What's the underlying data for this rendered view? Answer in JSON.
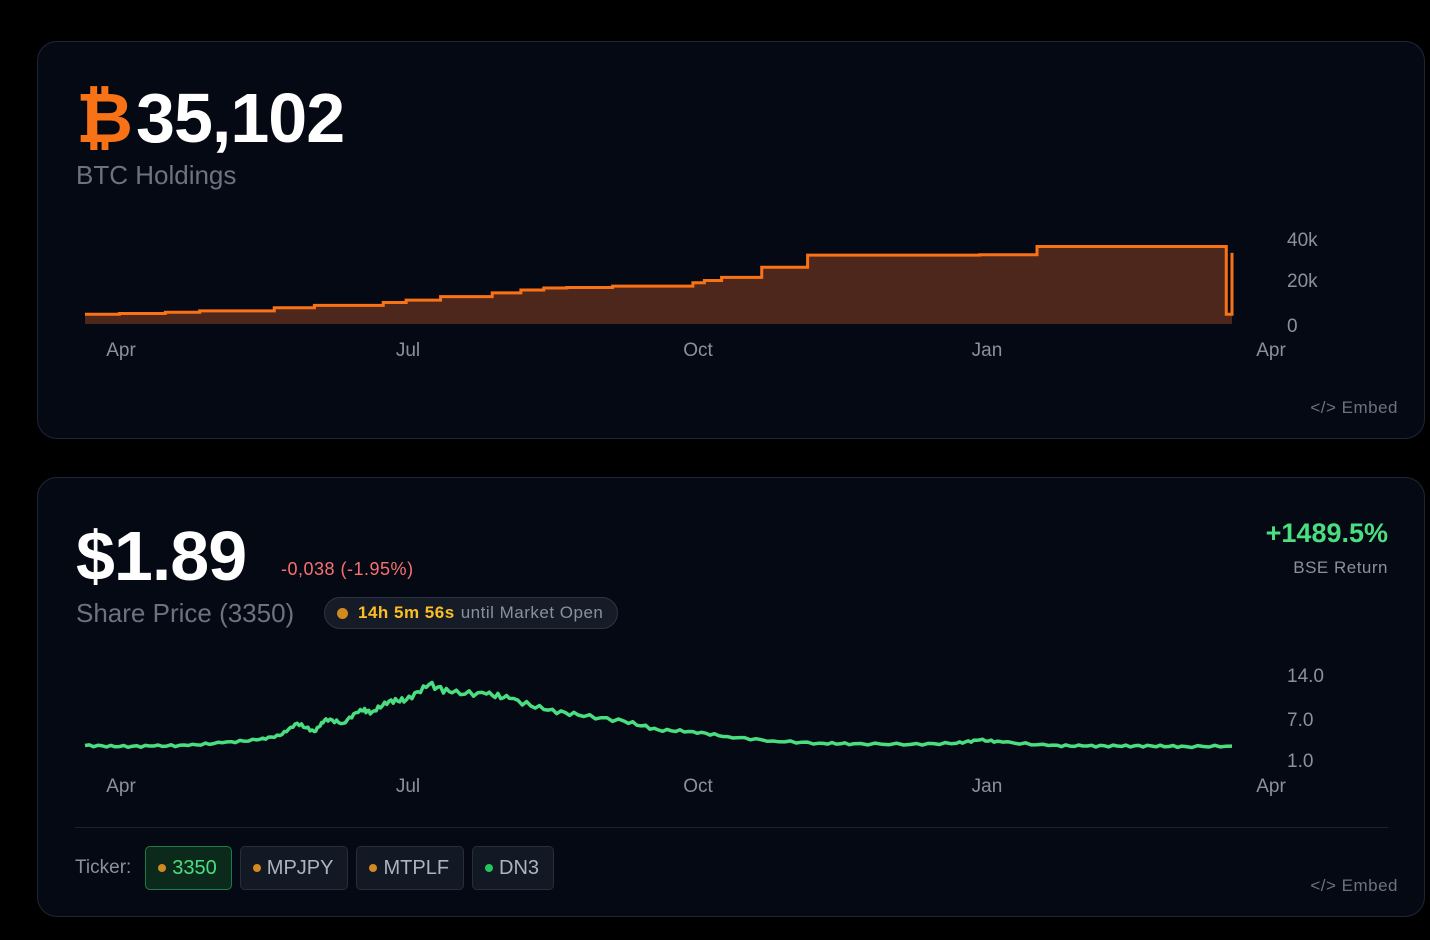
{
  "btc_card": {
    "currency_symbol": "₿",
    "value": "35,102",
    "subtitle": "BTC Holdings",
    "embed_label": "</> Embed",
    "colors": {
      "line": "#f97316",
      "fill": "#4e271c"
    }
  },
  "price_card": {
    "value": "$1.89",
    "change": "-0,038 (-1.95%)",
    "subtitle": "Share Price (3350)",
    "market_status": {
      "countdown": "14h 5m 56s",
      "label": "until Market Open",
      "dot_color": "#d18a1f"
    },
    "return_value": "+1489.5%",
    "return_label": "BSE Return",
    "embed_label": "</> Embed",
    "ticker_label": "Ticker:",
    "tickers": [
      {
        "label": "3350",
        "dot_color": "#d18a1f",
        "active": true
      },
      {
        "label": "MPJPY",
        "dot_color": "#d18a1f",
        "active": false
      },
      {
        "label": "MTPLF",
        "dot_color": "#d18a1f",
        "active": false
      },
      {
        "label": "DN3",
        "dot_color": "#22c55e",
        "active": false
      }
    ],
    "colors": {
      "line": "#4ade80"
    }
  },
  "chart_data": [
    {
      "type": "area",
      "title": "BTC Holdings",
      "step": true,
      "x_ticks": [
        "Apr",
        "Jul",
        "Oct",
        "Jan",
        "Apr"
      ],
      "y_ticks": [
        "40k",
        "20k",
        "0"
      ],
      "ylim": [
        0,
        40000
      ],
      "x": [
        0,
        0.03,
        0.07,
        0.1,
        0.165,
        0.2,
        0.26,
        0.28,
        0.31,
        0.355,
        0.38,
        0.4,
        0.42,
        0.46,
        0.53,
        0.54,
        0.555,
        0.59,
        0.63,
        0.78,
        0.83,
        0.9,
        0.99,
        0.995,
        1.0
      ],
      "values": [
        4800,
        5200,
        5800,
        6500,
        8000,
        9200,
        10600,
        11800,
        13500,
        15400,
        16800,
        17800,
        18000,
        18700,
        20400,
        21500,
        23000,
        28000,
        34000,
        34200,
        38300,
        38300,
        38300,
        4800,
        35102
      ],
      "series_color": "#f97316",
      "legend": null,
      "grid": false
    },
    {
      "type": "line",
      "title": "Share Price (3350)",
      "x_ticks": [
        "Apr",
        "Jul",
        "Oct",
        "Jan",
        "Apr"
      ],
      "y_ticks": [
        "14.0",
        "7.0",
        "1.0"
      ],
      "ylim": [
        1.0,
        14.0
      ],
      "x": [
        0,
        0.03,
        0.06,
        0.09,
        0.12,
        0.15,
        0.17,
        0.185,
        0.2,
        0.21,
        0.225,
        0.24,
        0.25,
        0.265,
        0.28,
        0.3,
        0.32,
        0.35,
        0.37,
        0.4,
        0.43,
        0.47,
        0.5,
        0.53,
        0.56,
        0.6,
        0.64,
        0.67,
        0.72,
        0.76,
        0.78,
        0.8,
        0.84,
        0.87,
        0.9,
        0.93,
        0.96,
        1.0
      ],
      "values": [
        2.0,
        1.8,
        1.9,
        2.0,
        2.5,
        3.0,
        3.8,
        6.0,
        4.5,
        6.8,
        6.0,
        8.5,
        8.0,
        10.0,
        10.2,
        13.0,
        11.5,
        11.3,
        10.5,
        8.5,
        7.5,
        6.4,
        4.8,
        4.5,
        3.6,
        2.8,
        2.4,
        2.3,
        2.2,
        2.4,
        3.0,
        2.6,
        2.0,
        1.9,
        1.9,
        1.9,
        1.8,
        1.89
      ],
      "series_color": "#4ade80",
      "legend": null,
      "grid": false
    }
  ]
}
